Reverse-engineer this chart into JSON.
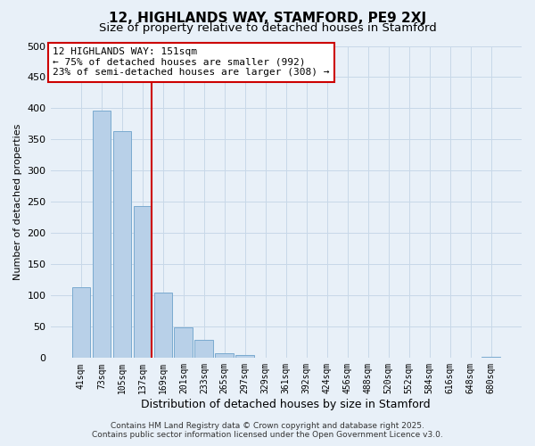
{
  "title": "12, HIGHLANDS WAY, STAMFORD, PE9 2XJ",
  "subtitle": "Size of property relative to detached houses in Stamford",
  "xlabel": "Distribution of detached houses by size in Stamford",
  "ylabel": "Number of detached properties",
  "bar_labels": [
    "41sqm",
    "73sqm",
    "105sqm",
    "137sqm",
    "169sqm",
    "201sqm",
    "233sqm",
    "265sqm",
    "297sqm",
    "329sqm",
    "361sqm",
    "392sqm",
    "424sqm",
    "456sqm",
    "488sqm",
    "520sqm",
    "552sqm",
    "584sqm",
    "616sqm",
    "648sqm",
    "680sqm"
  ],
  "bar_values": [
    113,
    397,
    364,
    244,
    105,
    49,
    29,
    8,
    5,
    0,
    0,
    0,
    0,
    0,
    0,
    0,
    0,
    0,
    0,
    0,
    2
  ],
  "bar_color": "#b8d0e8",
  "bar_edge_color": "#7aaad0",
  "vline_color": "#cc0000",
  "annotation_text": "12 HIGHLANDS WAY: 151sqm\n← 75% of detached houses are smaller (992)\n23% of semi-detached houses are larger (308) →",
  "annotation_box_facecolor": "#ffffff",
  "annotation_box_edgecolor": "#cc0000",
  "ylim": [
    0,
    500
  ],
  "yticks": [
    0,
    50,
    100,
    150,
    200,
    250,
    300,
    350,
    400,
    450,
    500
  ],
  "grid_color": "#c8d8e8",
  "background_color": "#e8f0f8",
  "footer_line1": "Contains HM Land Registry data © Crown copyright and database right 2025.",
  "footer_line2": "Contains public sector information licensed under the Open Government Licence v3.0.",
  "title_fontsize": 11,
  "subtitle_fontsize": 9.5,
  "annotation_fontsize": 8,
  "footer_fontsize": 6.5,
  "xlabel_fontsize": 9,
  "ylabel_fontsize": 8
}
